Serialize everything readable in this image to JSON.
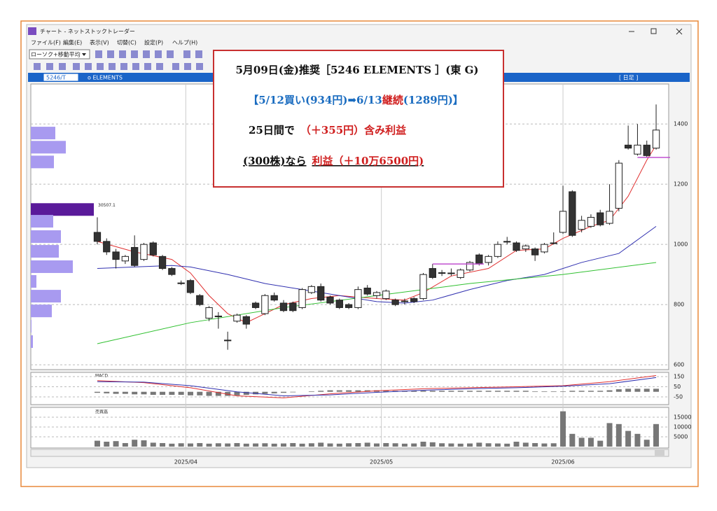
{
  "window": {
    "title": "チャート - ネットストックトレーダー",
    "menu": [
      "ファイル(F)",
      "編集(E)",
      "表示(V)",
      "切替(C)",
      "設定(P)",
      "ヘルプ(H)"
    ],
    "dropdown": "ローソク+移動平均"
  },
  "header": {
    "code": "5246/T",
    "name": "o ELEMENTS",
    "period": "[ 日足 ]"
  },
  "note": {
    "line1": "5月09日(金)推奨［5246 ELEMENTS ］(東 G)",
    "line2": [
      "【5/12買い(934円)",
      "➡6/13",
      "継続",
      "(1289円)】"
    ],
    "line3": [
      "25日間で",
      "（＋355円）含み利益"
    ],
    "line4": [
      "(300株)なら",
      "利益（＋10万6500円)"
    ]
  },
  "chart_data": [
    {
      "type": "candlestick",
      "ohlc": [
        [
          1040,
          1090,
          1000,
          1010
        ],
        [
          1010,
          1020,
          965,
          975
        ],
        [
          975,
          985,
          920,
          950
        ],
        [
          945,
          965,
          935,
          960
        ],
        [
          990,
          1030,
          925,
          930
        ],
        [
          950,
          1005,
          945,
          1000
        ],
        [
          1005,
          1010,
          960,
          965
        ],
        [
          960,
          965,
          915,
          920
        ],
        [
          920,
          925,
          895,
          900
        ],
        [
          872,
          880,
          865,
          870
        ],
        [
          880,
          885,
          835,
          840
        ],
        [
          830,
          835,
          795,
          800
        ],
        [
          755,
          795,
          745,
          790
        ],
        [
          762,
          775,
          720,
          760
        ],
        [
          682,
          710,
          650,
          680
        ],
        [
          745,
          770,
          740,
          765
        ],
        [
          760,
          765,
          720,
          735
        ],
        [
          805,
          810,
          785,
          790
        ],
        [
          770,
          835,
          765,
          830
        ],
        [
          830,
          840,
          810,
          815
        ],
        [
          805,
          815,
          775,
          780
        ],
        [
          805,
          810,
          775,
          780
        ],
        [
          790,
          855,
          785,
          850
        ],
        [
          840,
          865,
          835,
          860
        ],
        [
          860,
          870,
          810,
          815
        ],
        [
          825,
          830,
          800,
          805
        ],
        [
          815,
          820,
          785,
          790
        ],
        [
          800,
          805,
          785,
          790
        ],
        [
          790,
          860,
          785,
          850
        ],
        [
          855,
          865,
          830,
          835
        ],
        [
          830,
          845,
          820,
          840
        ],
        [
          820,
          850,
          815,
          845
        ],
        [
          815,
          820,
          795,
          800
        ],
        [
          810,
          820,
          800,
          812
        ],
        [
          820,
          825,
          805,
          810
        ],
        [
          820,
          905,
          815,
          900
        ],
        [
          920,
          935,
          885,
          890
        ],
        [
          905,
          915,
          895,
          906
        ],
        [
          904,
          920,
          895,
          905
        ],
        [
          890,
          920,
          885,
          915
        ],
        [
          915,
          945,
          910,
          940
        ],
        [
          965,
          970,
          930,
          935
        ],
        [
          940,
          965,
          930,
          960
        ],
        [
          960,
          1010,
          955,
          1000
        ],
        [
          1008,
          1025,
          1000,
          1010
        ],
        [
          1005,
          1010,
          975,
          980
        ],
        [
          985,
          1000,
          975,
          995
        ],
        [
          985,
          990,
          945,
          965
        ],
        [
          975,
          1005,
          970,
          1000
        ],
        [
          1003,
          1040,
          1000,
          1005
        ],
        [
          1040,
          1195,
          1035,
          1110
        ],
        [
          1175,
          1180,
          1025,
          1030
        ],
        [
          1050,
          1095,
          1040,
          1080
        ],
        [
          1060,
          1100,
          1055,
          1090
        ],
        [
          1105,
          1115,
          1060,
          1065
        ],
        [
          1070,
          1200,
          1065,
          1110
        ],
        [
          1120,
          1280,
          1110,
          1270
        ],
        [
          1330,
          1395,
          1315,
          1320
        ],
        [
          1300,
          1400,
          1295,
          1330
        ],
        [
          1330,
          1345,
          1290,
          1295
        ],
        [
          1320,
          1465,
          1315,
          1380
        ]
      ],
      "series": [
        {
          "color": "#e03030",
          "x": [
            0,
            4,
            8,
            10,
            12,
            14,
            16,
            18,
            20,
            23,
            26,
            30,
            33,
            35,
            38,
            42,
            45,
            48,
            50,
            53,
            55,
            57,
            59,
            60
          ],
          "values": [
            1010,
            975,
            950,
            905,
            830,
            770,
            740,
            770,
            800,
            820,
            830,
            820,
            815,
            840,
            895,
            920,
            980,
            985,
            1020,
            1060,
            1080,
            1160,
            1280,
            1330
          ]
        },
        {
          "color": "#3030b0",
          "x": [
            0,
            4,
            8,
            10,
            14,
            18,
            22,
            26,
            30,
            33,
            36,
            40,
            44,
            48,
            52,
            56,
            60
          ],
          "values": [
            920,
            925,
            930,
            925,
            900,
            870,
            850,
            830,
            810,
            805,
            815,
            850,
            880,
            900,
            940,
            970,
            1060
          ]
        },
        {
          "color": "#30c030",
          "x": [
            0,
            10,
            20,
            30,
            40,
            50,
            60
          ],
          "values": [
            670,
            740,
            790,
            830,
            870,
            900,
            940
          ]
        }
      ],
      "levels": [
        {
          "value": 935,
          "from": 36,
          "to": 41.5,
          "color": "#c050d0"
        },
        {
          "value": 1289,
          "from": 58,
          "to": 61.5,
          "color": "#c050d0"
        }
      ],
      "volume_profile": {
        "prices": [
          1370,
          1323,
          1274,
          1116,
          1077,
          1026,
          977,
          926,
          877,
          828,
          779,
          728,
          677
        ],
        "values": [
          11864,
          16948,
          11186,
          30507.1,
          10847,
          14575,
          13559,
          20338,
          2712,
          14575,
          10169,
          339,
          1017
        ]
      },
      "xlim": [
        -7.14,
        61.35
      ],
      "ylim": [
        584,
        1533
      ],
      "yticks": [
        600,
        800,
        1000,
        1200,
        1400
      ],
      "x_labels": [
        {
          "index": 9.5,
          "label": "2025/04"
        },
        {
          "index": 30.5,
          "label": "2025/05"
        },
        {
          "index": 50,
          "label": "2025/06"
        }
      ]
    },
    {
      "type": "macd",
      "title": "MACD",
      "histogram": [
        -10,
        -15,
        -20,
        -20,
        -25,
        -25,
        -30,
        -30,
        -30,
        -30,
        -35,
        -35,
        -40,
        -40,
        -40,
        -35,
        -30,
        -25,
        -20,
        -15,
        -10,
        -5,
        0,
        5,
        10,
        15,
        15,
        15,
        15,
        15,
        15,
        10,
        10,
        10,
        10,
        10,
        10,
        10,
        10,
        10,
        10,
        10,
        10,
        10,
        10,
        10,
        10,
        5,
        5,
        5,
        5,
        10,
        10,
        10,
        10,
        15,
        25,
        30,
        30,
        30,
        30
      ],
      "series": [
        {
          "color": "#e03030",
          "x": [
            0,
            5,
            10,
            15,
            20,
            25,
            30,
            35,
            40,
            45,
            50,
            55,
            60
          ],
          "values": [
            110,
            90,
            40,
            -40,
            -60,
            -20,
            10,
            30,
            40,
            50,
            60,
            100,
            160
          ]
        },
        {
          "color": "#3030b0",
          "x": [
            0,
            5,
            10,
            15,
            20,
            25,
            30,
            35,
            40,
            45,
            50,
            55,
            60
          ],
          "values": [
            100,
            95,
            60,
            0,
            -40,
            -30,
            -5,
            15,
            30,
            40,
            55,
            80,
            140
          ]
        }
      ],
      "xlim": [
        -7.14,
        61.35
      ],
      "ylim": [
        -126,
        191
      ],
      "yticks": [
        -50,
        50,
        150
      ]
    },
    {
      "type": "bar",
      "title": "売買高",
      "values": [
        3000,
        2500,
        2800,
        1800,
        3500,
        3200,
        2000,
        1800,
        1500,
        1700,
        1600,
        1800,
        1500,
        1700,
        1600,
        1800,
        1500,
        1600,
        1700,
        1500,
        1600,
        1800,
        1500,
        1700,
        2000,
        1600,
        1500,
        1700,
        1800,
        2000,
        1600,
        1800,
        1700,
        1500,
        1600,
        2500,
        2200,
        1700,
        1600,
        1500,
        1600,
        2000,
        1700,
        1600,
        1500,
        2500,
        2000,
        1800,
        1600,
        1700,
        18000,
        6500,
        4500,
        4500,
        3000,
        12000,
        11500,
        8000,
        6500,
        3500,
        11500
      ],
      "xlim": [
        -7.14,
        61.35
      ],
      "ylim": [
        0,
        20000
      ],
      "yticks": [
        5000,
        10000,
        15000
      ]
    }
  ]
}
